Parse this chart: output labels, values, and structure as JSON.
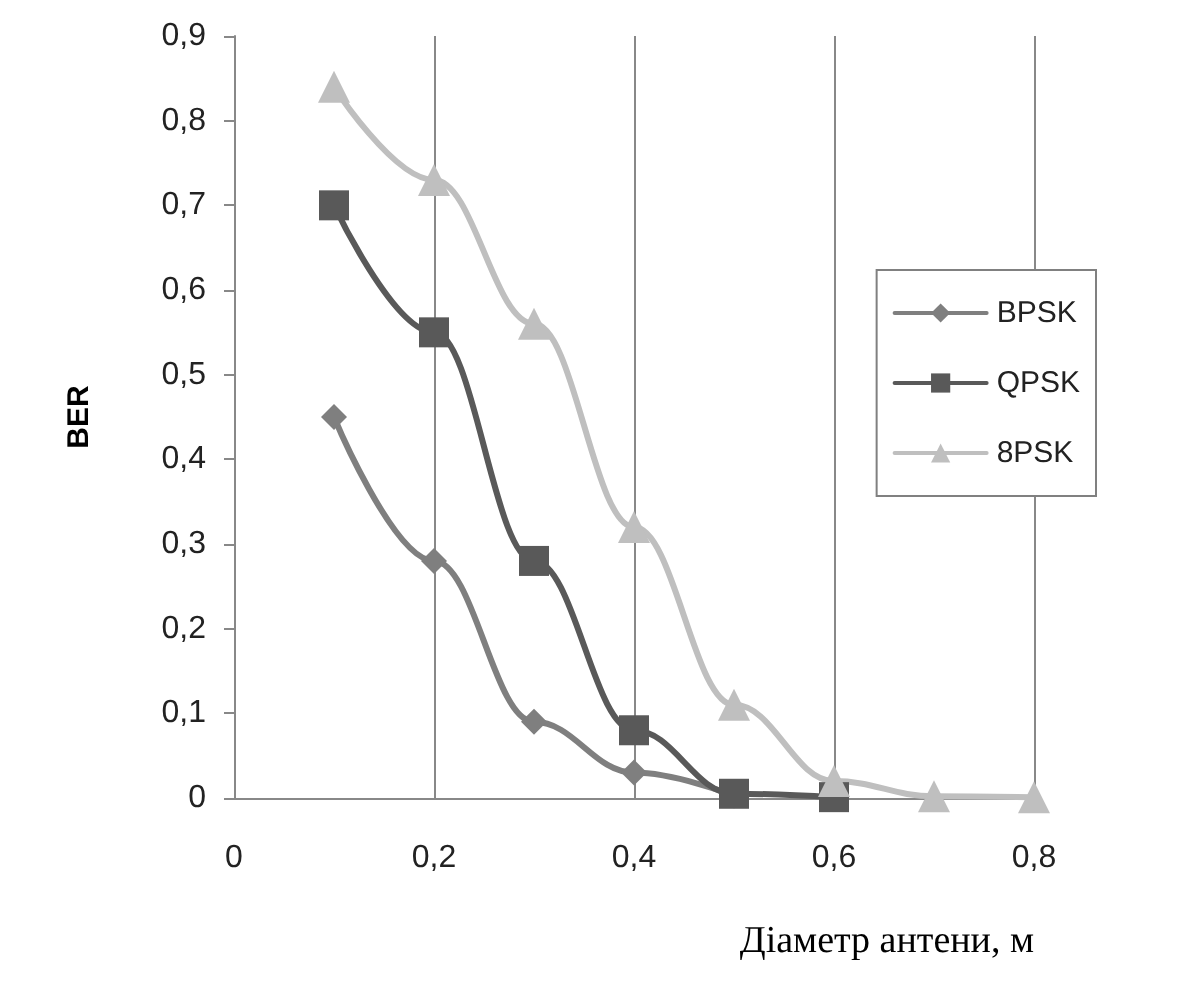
{
  "chart_data": {
    "type": "line",
    "xlabel": "Діаметр антени, м",
    "ylabel": "BER",
    "xlim": [
      0,
      0.8
    ],
    "ylim": [
      0,
      0.9
    ],
    "xticks": [
      {
        "value": 0,
        "label": "0"
      },
      {
        "value": 0.2,
        "label": "0,2"
      },
      {
        "value": 0.4,
        "label": "0,4"
      },
      {
        "value": 0.6,
        "label": "0,6"
      },
      {
        "value": 0.8,
        "label": "0,8"
      }
    ],
    "yticks": [
      {
        "value": 0,
        "label": "0"
      },
      {
        "value": 0.1,
        "label": "0,1"
      },
      {
        "value": 0.2,
        "label": "0,2"
      },
      {
        "value": 0.3,
        "label": "0,3"
      },
      {
        "value": 0.4,
        "label": "0,4"
      },
      {
        "value": 0.5,
        "label": "0,5"
      },
      {
        "value": 0.6,
        "label": "0,6"
      },
      {
        "value": 0.7,
        "label": "0,7"
      },
      {
        "value": 0.8,
        "label": "0,8"
      },
      {
        "value": 0.9,
        "label": "0,9"
      }
    ],
    "grid": "x",
    "legend": "right",
    "series": [
      {
        "name": "BPSK",
        "color": "#7f7f7f",
        "marker": "diamond",
        "x": [
          0.1,
          0.2,
          0.3,
          0.4,
          0.5
        ],
        "values": [
          0.45,
          0.28,
          0.09,
          0.03,
          0.003
        ]
      },
      {
        "name": "QPSK",
        "color": "#595959",
        "marker": "square",
        "x": [
          0.1,
          0.2,
          0.3,
          0.4,
          0.5,
          0.6
        ],
        "values": [
          0.7,
          0.55,
          0.28,
          0.08,
          0.005,
          0.001
        ]
      },
      {
        "name": "8PSK",
        "color": "#bfbfbf",
        "marker": "triangle",
        "x": [
          0.1,
          0.2,
          0.3,
          0.4,
          0.5,
          0.6,
          0.7,
          0.8
        ],
        "values": [
          0.84,
          0.73,
          0.56,
          0.32,
          0.11,
          0.02,
          0.002,
          0.001
        ]
      }
    ]
  }
}
